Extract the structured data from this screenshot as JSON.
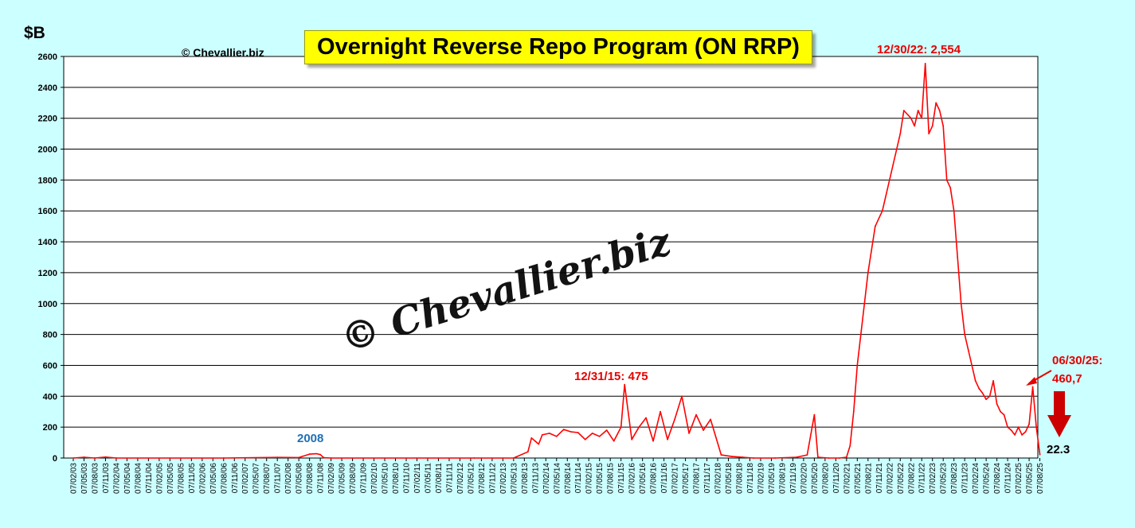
{
  "header": {
    "title": "Overnight Reverse Repo Program (ON RRP)",
    "unit": "$B",
    "copyright": "© Chevallier.biz",
    "watermark": "© Chevallier.biz"
  },
  "annotations": {
    "peak": "12/30/22: 2,554",
    "y2015": "12/31/15: 475",
    "y2008": "2008",
    "recent_line1": "06/30/25:",
    "recent_line2": "460,7",
    "latest": "22.3"
  },
  "colors": {
    "background": "#ccffff",
    "plot_background": "#ffffff",
    "series": "#ff0000",
    "annotation_red": "#e60000",
    "annotation_blue": "#1f6fb5",
    "title_box": "#ffff00",
    "arrow": "#cc0000"
  },
  "chart_data": {
    "type": "line",
    "title": "Overnight Reverse Repo Program (ON RRP)",
    "ylabel": "$B",
    "xlabel": "",
    "ylim": [
      0,
      2600
    ],
    "yticks": [
      0,
      200,
      400,
      600,
      800,
      1000,
      1200,
      1400,
      1600,
      1800,
      2000,
      2200,
      2400,
      2600
    ],
    "grid": true,
    "legend": "none",
    "x_tick_labels": [
      "07/02/03",
      "07/05/03",
      "07/08/03",
      "07/11/03",
      "07/02/04",
      "07/05/04",
      "07/08/04",
      "07/11/04",
      "07/02/05",
      "07/05/05",
      "07/08/05",
      "07/11/05",
      "07/02/06",
      "07/05/06",
      "07/08/06",
      "07/11/06",
      "07/02/07",
      "07/05/07",
      "07/08/07",
      "07/11/07",
      "07/02/08",
      "07/05/08",
      "07/08/08",
      "07/11/08",
      "07/02/09",
      "07/05/09",
      "07/08/09",
      "07/11/09",
      "07/02/10",
      "07/05/10",
      "07/08/10",
      "07/11/10",
      "07/02/11",
      "07/05/11",
      "07/08/11",
      "07/11/11",
      "07/02/12",
      "07/05/12",
      "07/08/12",
      "07/11/12",
      "07/02/13",
      "07/05/13",
      "07/08/13",
      "07/11/13",
      "07/02/14",
      "07/05/14",
      "07/08/14",
      "07/11/14",
      "07/02/15",
      "07/05/15",
      "07/08/15",
      "07/11/15",
      "07/02/16",
      "07/05/16",
      "07/08/16",
      "07/11/16",
      "07/02/17",
      "07/05/17",
      "07/08/17",
      "07/11/17",
      "07/02/18",
      "07/05/18",
      "07/08/18",
      "07/11/18",
      "07/02/19",
      "07/05/19",
      "07/08/19",
      "07/11/19",
      "07/02/20",
      "07/05/20",
      "07/08/20",
      "07/11/20",
      "07/02/21",
      "07/05/21",
      "07/08/21",
      "07/11/21",
      "07/02/22",
      "07/05/22",
      "07/08/22",
      "07/11/22",
      "07/02/23",
      "07/05/23",
      "07/08/23",
      "07/11/23",
      "07/02/24",
      "07/05/24",
      "07/08/24",
      "07/11/24",
      "07/02/25",
      "07/05/25",
      "07/08/25"
    ],
    "series": [
      {
        "x": [
          "2003-02",
          "2003-05",
          "2003-08",
          "2003-11",
          "2004-02",
          "2006-08",
          "2007-11",
          "2008-05",
          "2008-08",
          "2008-10",
          "2008-11",
          "2008-12",
          "2009-02",
          "2012-06",
          "2013-05",
          "2013-09",
          "2013-10",
          "2013-11",
          "2013-12",
          "2014-01",
          "2014-03",
          "2014-05",
          "2014-07",
          "2014-09",
          "2014-11",
          "2015-01",
          "2015-03",
          "2015-05",
          "2015-07",
          "2015-09",
          "2015-11",
          "2015-12",
          "2016-02",
          "2016-04",
          "2016-06",
          "2016-08",
          "2016-10",
          "2016-12",
          "2017-02",
          "2017-04",
          "2017-06",
          "2017-08",
          "2017-10",
          "2017-12",
          "2018-03",
          "2018-06",
          "2018-09",
          "2018-12",
          "2019-06",
          "2019-12",
          "2020-03",
          "2020-05",
          "2020-06",
          "2020-09",
          "2020-12",
          "2021-02",
          "2021-03",
          "2021-04",
          "2021-05",
          "2021-06",
          "2021-07",
          "2021-08",
          "2021-10",
          "2021-12",
          "2022-01",
          "2022-03",
          "2022-05",
          "2022-06",
          "2022-08",
          "2022-09",
          "2022-10",
          "2022-11",
          "2022-12",
          "2023-01",
          "2023-02",
          "2023-03",
          "2023-04",
          "2023-05",
          "2023-06",
          "2023-07",
          "2023-08",
          "2023-09",
          "2023-10",
          "2023-11",
          "2023-12",
          "2024-01",
          "2024-02",
          "2024-03",
          "2024-04",
          "2024-05",
          "2024-06",
          "2024-07",
          "2024-08",
          "2024-09",
          "2024-10",
          "2024-11",
          "2024-12",
          "2025-01",
          "2025-02",
          "2025-03",
          "2025-04",
          "2025-05",
          "2025-06",
          "2025-07",
          "2025-08"
        ],
        "y": [
          0,
          5,
          0,
          6,
          0,
          0,
          4,
          3,
          25,
          28,
          22,
          2,
          0,
          0,
          0,
          40,
          130,
          110,
          90,
          150,
          160,
          140,
          185,
          170,
          165,
          120,
          160,
          140,
          180,
          110,
          200,
          475,
          120,
          200,
          260,
          110,
          300,
          120,
          250,
          400,
          160,
          280,
          180,
          250,
          20,
          10,
          5,
          0,
          0,
          5,
          20,
          280,
          5,
          0,
          0,
          5,
          80,
          300,
          600,
          800,
          1000,
          1200,
          1500,
          1600,
          1700,
          1900,
          2100,
          2250,
          2200,
          2150,
          2250,
          2200,
          2554,
          2100,
          2150,
          2300,
          2250,
          2150,
          1800,
          1750,
          1600,
          1300,
          1000,
          800,
          700,
          600,
          500,
          450,
          420,
          380,
          400,
          500,
          350,
          300,
          280,
          200,
          180,
          150,
          200,
          150,
          170,
          220,
          460.7,
          200,
          22.3
        ]
      }
    ]
  }
}
